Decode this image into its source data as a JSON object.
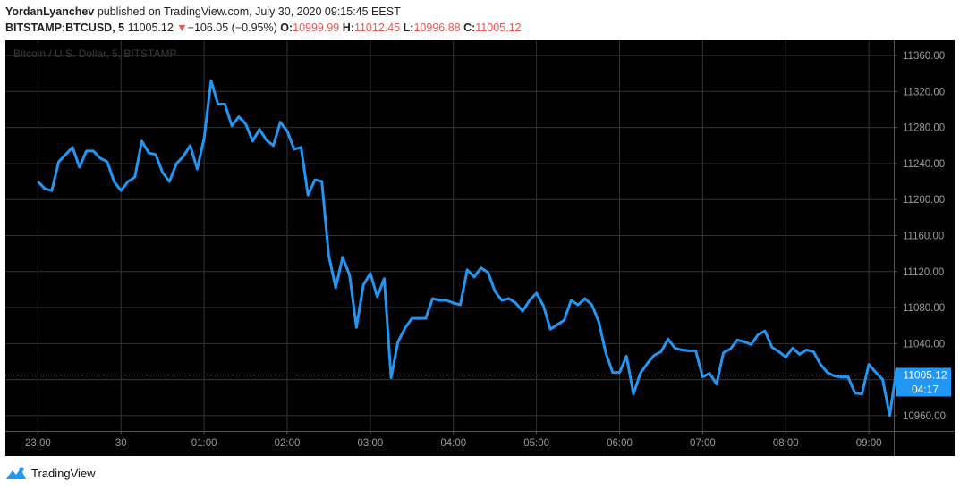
{
  "header": {
    "author": "YordanLyanchev",
    "published_text": "published on TradingView.com, July 30, 2020 09:15:45 EEST",
    "symbol": "BITSTAMP:BTCUSD, 5",
    "last_price": "11005.12",
    "change_arrow": "▼",
    "change": "−106.05 (−0.95%)",
    "o_label": "O:",
    "o_value": "10999.99",
    "h_label": "H:",
    "h_value": "11012.45",
    "l_label": "L:",
    "l_value": "10996.88",
    "c_label": "C:",
    "c_value": "11005.12"
  },
  "chart_data": {
    "type": "line",
    "watermark": "Bitcoin / U.S. Dollar, 5, BITSTAMP",
    "x_ticks": [
      "23:00",
      "30",
      "01:00",
      "02:00",
      "03:00",
      "04:00",
      "05:00",
      "06:00",
      "07:00",
      "08:00",
      "09:00"
    ],
    "y_ticks": [
      "11360.00",
      "11320.00",
      "11280.00",
      "11240.00",
      "11200.00",
      "11160.00",
      "11120.00",
      "11080.00",
      "11040.00",
      "11000.00",
      "10960.00"
    ],
    "ylim": [
      10943,
      11377
    ],
    "x_range": [
      -4.7,
      123.6
    ],
    "series": [
      {
        "values": [
          11220,
          11212,
          11210,
          11242,
          11250,
          11258,
          11236,
          11254,
          11254,
          11246,
          11242,
          11220,
          11210,
          11220,
          11225,
          11265,
          11252,
          11250,
          11230,
          11220,
          11240,
          11248,
          11260,
          11234,
          11268,
          11332,
          11306,
          11306,
          11282,
          11292,
          11284,
          11265,
          11278,
          11266,
          11260,
          11286,
          11276,
          11256,
          11258,
          11205,
          11222,
          11220,
          11138,
          11102,
          11136,
          11116,
          11058,
          11105,
          11118,
          11092,
          11112,
          11002,
          11042,
          11057,
          11068,
          11068,
          11068,
          11090,
          11088,
          11088,
          11085,
          11083,
          11122,
          11114,
          11124,
          11119,
          11098,
          11088,
          11090,
          11085,
          11076,
          11088,
          11096,
          11082,
          11056,
          11061,
          11066,
          11088,
          11083,
          11090,
          11083,
          11064,
          11030,
          11008,
          11008,
          11026,
          10984,
          11007,
          11018,
          11027,
          11031,
          11045,
          11035,
          11033,
          11032,
          11032,
          11003,
          11007,
          10995,
          11030,
          11034,
          11044,
          11042,
          11039,
          11050,
          11054,
          11036,
          11031,
          11025,
          11035,
          11028,
          11033,
          11031,
          11017,
          11008,
          11004,
          11003,
          11003,
          10985,
          10984,
          11017,
          11008,
          11000,
          10960,
          11012,
          11002,
          11005,
          11005
        ]
      }
    ],
    "last_value": 11005.12,
    "last_label": "11005.12",
    "countdown_label": "04:17",
    "grid": true,
    "colors": {
      "background": "#000000",
      "line": "#2196f3",
      "grid": "#333333",
      "text": "#9c9c9c",
      "price_label_bg": "#2196f3"
    }
  },
  "footer": {
    "brand": "TradingView"
  }
}
